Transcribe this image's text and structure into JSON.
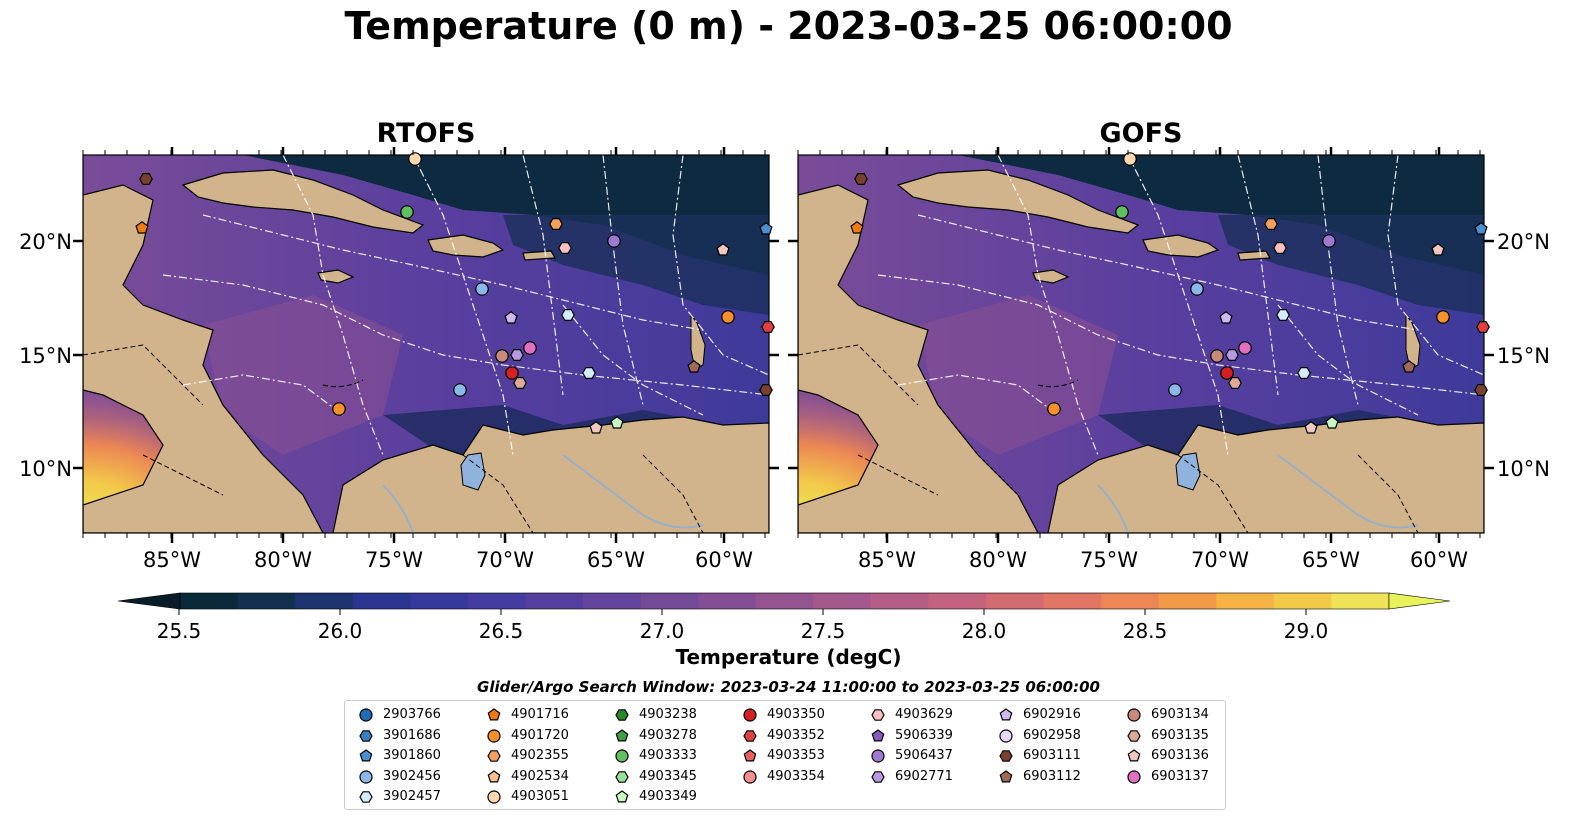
{
  "title": "Temperature (0 m) - 2023-03-25 06:00:00",
  "panels": [
    {
      "title": "RTOFS"
    },
    {
      "title": "GOFS"
    }
  ],
  "axes": {
    "lon_labels": [
      "85°W",
      "80°W",
      "75°W",
      "70°W",
      "65°W",
      "60°W"
    ],
    "lat_labels": [
      "20°N",
      "15°N",
      "10°N"
    ]
  },
  "colorbar": {
    "label": "Temperature (degC)",
    "tick_labels": [
      "25.5",
      "26.0",
      "26.5",
      "27.0",
      "27.5",
      "28.0",
      "28.5",
      "29.0"
    ],
    "colors": [
      "#0a2a3a",
      "#12304e",
      "#1e3470",
      "#2a3590",
      "#36389c",
      "#443ca0",
      "#533f9e",
      "#63439c",
      "#734a98",
      "#834f94",
      "#935490",
      "#a3598c",
      "#b45e86",
      "#c4637e",
      "#d46a72",
      "#e27664",
      "#ec8654",
      "#f39a48",
      "#f6b244",
      "#f3c94a",
      "#eee358"
    ],
    "extend_low_color": "#071e2a",
    "extend_high_color": "#e8f35c"
  },
  "legend": {
    "title": "Glider/Argo Search Window: 2023-03-24 11:00:00 to 2023-03-25 06:00:00",
    "columns": [
      [
        {
          "id": "2903766",
          "marker": "circle",
          "color": "#1f6eb4"
        },
        {
          "id": "3901686",
          "marker": "hexagon",
          "color": "#3a7fc0"
        },
        {
          "id": "3901860",
          "marker": "pentagon",
          "color": "#4a8fd0"
        },
        {
          "id": "3902456",
          "marker": "circle",
          "color": "#8ab8e8"
        },
        {
          "id": "3902457",
          "marker": "hexagon",
          "color": "#d4ecfa"
        }
      ],
      [
        {
          "id": "4901716",
          "marker": "pentagon",
          "color": "#f07a10"
        },
        {
          "id": "4901720",
          "marker": "circle",
          "color": "#f5902a"
        },
        {
          "id": "4902355",
          "marker": "hexagon",
          "color": "#f6a060"
        },
        {
          "id": "4902534",
          "marker": "pentagon",
          "color": "#f8c090"
        },
        {
          "id": "4903051",
          "marker": "circle",
          "color": "#fcd8b0"
        }
      ],
      [
        {
          "id": "4903238",
          "marker": "hexagon",
          "color": "#2a8a2a"
        },
        {
          "id": "4903278",
          "marker": "pentagon",
          "color": "#40a040"
        },
        {
          "id": "4903333",
          "marker": "circle",
          "color": "#60c060"
        },
        {
          "id": "4903345",
          "marker": "hexagon",
          "color": "#98e098"
        },
        {
          "id": "4903349",
          "marker": "pentagon",
          "color": "#c8f8c0"
        }
      ],
      [
        {
          "id": "4903350",
          "marker": "circle",
          "color": "#d42020"
        },
        {
          "id": "4903352",
          "marker": "hexagon",
          "color": "#e04040"
        },
        {
          "id": "4903353",
          "marker": "pentagon",
          "color": "#e86060"
        },
        {
          "id": "4903354",
          "marker": "circle",
          "color": "#f09090"
        }
      ],
      [
        {
          "id": "4903629",
          "marker": "hexagon",
          "color": "#f8c0c0"
        },
        {
          "id": "5906339",
          "marker": "pentagon",
          "color": "#8a5cc0"
        },
        {
          "id": "5906437",
          "marker": "circle",
          "color": "#a07ad0"
        },
        {
          "id": "6902771",
          "marker": "hexagon",
          "color": "#b89ae0"
        }
      ],
      [
        {
          "id": "6902916",
          "marker": "pentagon",
          "color": "#d0b8f0"
        },
        {
          "id": "6902958",
          "marker": "circle",
          "color": "#e8d8fa"
        },
        {
          "id": "6903111",
          "marker": "hexagon",
          "color": "#7a4030"
        },
        {
          "id": "6903112",
          "marker": "pentagon",
          "color": "#a06a58"
        }
      ],
      [
        {
          "id": "6903134",
          "marker": "circle",
          "color": "#c88a7a"
        },
        {
          "id": "6903135",
          "marker": "hexagon",
          "color": "#e0a898"
        },
        {
          "id": "6903136",
          "marker": "pentagon",
          "color": "#f0c8c0"
        },
        {
          "id": "6903137",
          "marker": "circle",
          "color": "#e070c0"
        }
      ]
    ]
  }
}
